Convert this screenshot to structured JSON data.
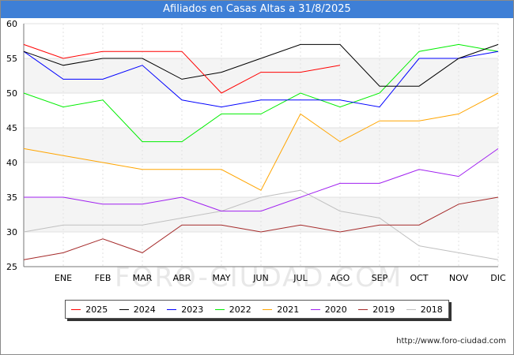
{
  "title": "Afiliados en Casas Altas a 31/8/2025",
  "source": "http://www.foro-ciudad.com",
  "watermark": "FORO-CIUDAD.COM",
  "chart_data": {
    "type": "line",
    "title": "Afiliados en Casas Altas a 31/8/2025",
    "categories": [
      "",
      "ENE",
      "FEB",
      "MAR",
      "ABR",
      "MAY",
      "JUN",
      "JUL",
      "AGO",
      "SEP",
      "OCT",
      "NOV",
      "DIC"
    ],
    "ylim": [
      25,
      60
    ],
    "yticks": [
      25,
      30,
      35,
      40,
      45,
      50,
      55,
      60
    ],
    "grid": true,
    "legend_position": "bottom",
    "series": [
      {
        "name": "2025",
        "color": "#ff0000",
        "values": [
          57,
          55,
          56,
          56,
          56,
          50,
          53,
          53,
          54,
          null,
          null,
          null,
          null
        ]
      },
      {
        "name": "2024",
        "color": "#000000",
        "values": [
          56,
          54,
          55,
          55,
          52,
          53,
          55,
          57,
          57,
          51,
          51,
          55,
          57
        ]
      },
      {
        "name": "2023",
        "color": "#0000ff",
        "values": [
          56,
          52,
          52,
          54,
          49,
          48,
          49,
          49,
          49,
          48,
          55,
          55,
          56
        ]
      },
      {
        "name": "2022",
        "color": "#00ee00",
        "values": [
          50,
          48,
          49,
          43,
          43,
          47,
          47,
          50,
          48,
          50,
          56,
          57,
          56
        ]
      },
      {
        "name": "2021",
        "color": "#ffa500",
        "values": [
          42,
          41,
          40,
          39,
          39,
          39,
          36,
          47,
          43,
          46,
          46,
          47,
          50
        ]
      },
      {
        "name": "2020",
        "color": "#a020f0",
        "values": [
          35,
          35,
          34,
          34,
          35,
          33,
          33,
          35,
          37,
          37,
          39,
          38,
          42
        ]
      },
      {
        "name": "2019",
        "color": "#a52a2a",
        "values": [
          26,
          27,
          29,
          27,
          31,
          31,
          30,
          31,
          30,
          31,
          31,
          34,
          35
        ]
      },
      {
        "name": "2018",
        "color": "#c0c0c0",
        "values": [
          30,
          31,
          31,
          31,
          32,
          33,
          35,
          36,
          33,
          32,
          28,
          27,
          26
        ]
      }
    ]
  }
}
